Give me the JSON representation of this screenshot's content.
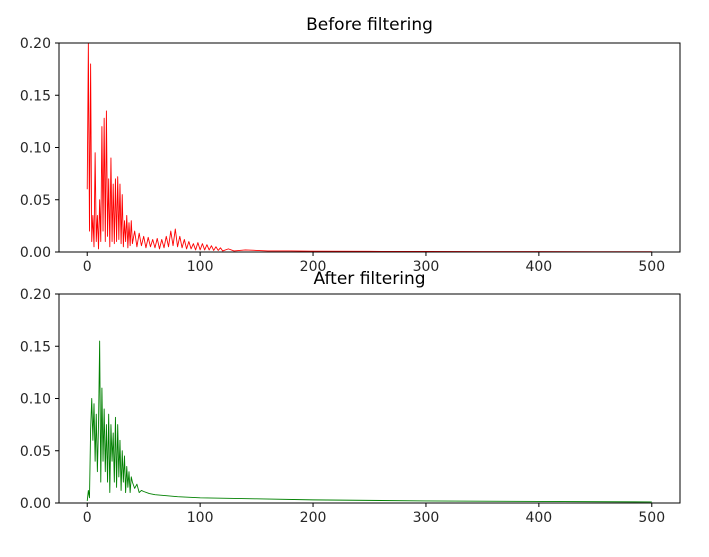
{
  "chart_data": [
    {
      "type": "line",
      "title": "Before filtering",
      "xlabel": "",
      "ylabel": "",
      "xlim": [
        -25,
        525
      ],
      "ylim": [
        0,
        0.2
      ],
      "xticks": [
        0,
        100,
        200,
        300,
        400,
        500
      ],
      "xtick_labels": [
        "0",
        "100",
        "200",
        "300",
        "400",
        "500"
      ],
      "yticks": [
        0,
        0.05,
        0.1,
        0.15,
        0.2
      ],
      "ytick_labels": [
        "0.00",
        "0.05",
        "0.10",
        "0.15",
        "0.20"
      ],
      "grid": false,
      "series": [
        {
          "color": "#ff0000",
          "x": [
            0,
            1,
            2,
            3,
            4,
            5,
            6,
            7,
            8,
            9,
            10,
            11,
            12,
            13,
            14,
            15,
            16,
            17,
            18,
            19,
            20,
            21,
            22,
            23,
            24,
            25,
            26,
            27,
            28,
            29,
            30,
            31,
            32,
            33,
            34,
            35,
            36,
            37,
            38,
            39,
            40,
            42,
            44,
            46,
            48,
            50,
            52,
            54,
            56,
            58,
            60,
            62,
            64,
            66,
            68,
            70,
            72,
            74,
            76,
            78,
            80,
            82,
            84,
            86,
            88,
            90,
            92,
            94,
            96,
            98,
            100,
            102,
            104,
            106,
            108,
            110,
            112,
            114,
            116,
            118,
            120,
            125,
            130,
            140,
            150,
            160,
            180,
            200,
            250,
            300,
            350,
            400,
            450,
            500
          ],
          "y": [
            0.06,
            0.2,
            0.02,
            0.18,
            0.01,
            0.035,
            0.005,
            0.095,
            0.01,
            0.035,
            0.003,
            0.05,
            0.01,
            0.12,
            0.02,
            0.128,
            0.01,
            0.135,
            0.015,
            0.07,
            0.005,
            0.09,
            0.01,
            0.065,
            0.008,
            0.07,
            0.01,
            0.072,
            0.012,
            0.065,
            0.008,
            0.055,
            0.005,
            0.03,
            0.01,
            0.035,
            0.004,
            0.028,
            0.006,
            0.03,
            0.008,
            0.02,
            0.005,
            0.018,
            0.006,
            0.015,
            0.004,
            0.014,
            0.005,
            0.012,
            0.004,
            0.013,
            0.003,
            0.012,
            0.004,
            0.015,
            0.005,
            0.02,
            0.006,
            0.022,
            0.005,
            0.015,
            0.004,
            0.012,
            0.003,
            0.01,
            0.003,
            0.008,
            0.002,
            0.009,
            0.002,
            0.008,
            0.002,
            0.007,
            0.002,
            0.006,
            0.0015,
            0.005,
            0.0015,
            0.004,
            0.001,
            0.003,
            0.001,
            0.002,
            0.0015,
            0.001,
            0.001,
            0.0008,
            0.0006,
            0.0005,
            0.0004,
            0.0004,
            0.0003,
            0.0003
          ]
        }
      ]
    },
    {
      "type": "line",
      "title": "After filtering",
      "xlabel": "",
      "ylabel": "",
      "xlim": [
        -25,
        525
      ],
      "ylim": [
        0,
        0.2
      ],
      "xticks": [
        0,
        100,
        200,
        300,
        400,
        500
      ],
      "xtick_labels": [
        "0",
        "100",
        "200",
        "300",
        "400",
        "500"
      ],
      "yticks": [
        0,
        0.05,
        0.1,
        0.15,
        0.2
      ],
      "ytick_labels": [
        "0.00",
        "0.05",
        "0.10",
        "0.15",
        "0.20"
      ],
      "grid": false,
      "series": [
        {
          "color": "#008000",
          "x": [
            0,
            1,
            2,
            3,
            4,
            5,
            6,
            7,
            8,
            9,
            10,
            11,
            12,
            13,
            14,
            15,
            16,
            17,
            18,
            19,
            20,
            21,
            22,
            23,
            24,
            25,
            26,
            27,
            28,
            29,
            30,
            31,
            32,
            33,
            34,
            35,
            36,
            37,
            38,
            39,
            40,
            42,
            44,
            46,
            48,
            50,
            55,
            60,
            70,
            80,
            100,
            150,
            200,
            300,
            400,
            500
          ],
          "y": [
            0.002,
            0.012,
            0.005,
            0.07,
            0.1,
            0.06,
            0.095,
            0.04,
            0.085,
            0.03,
            0.075,
            0.155,
            0.02,
            0.11,
            0.04,
            0.09,
            0.03,
            0.075,
            0.02,
            0.085,
            0.01,
            0.075,
            0.04,
            0.067,
            0.02,
            0.082,
            0.015,
            0.075,
            0.025,
            0.06,
            0.012,
            0.05,
            0.02,
            0.045,
            0.01,
            0.035,
            0.015,
            0.03,
            0.01,
            0.025,
            0.02,
            0.014,
            0.018,
            0.01,
            0.012,
            0.011,
            0.009,
            0.008,
            0.007,
            0.006,
            0.005,
            0.004,
            0.003,
            0.002,
            0.0015,
            0.001
          ]
        }
      ]
    }
  ]
}
